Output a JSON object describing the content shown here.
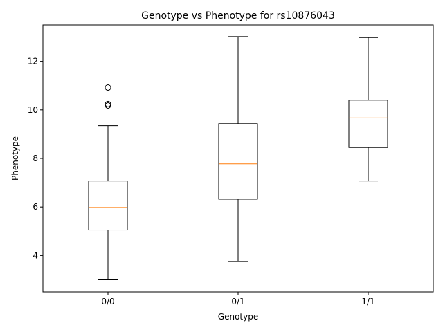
{
  "chart_data": {
    "type": "box",
    "title": "Genotype vs Phenotype for rs10876043",
    "xlabel": "Genotype",
    "ylabel": "Phenotype",
    "ylim": [
      2.5,
      13.5
    ],
    "yticks": [
      4,
      6,
      8,
      10,
      12
    ],
    "grid": false,
    "categories": [
      "0/0",
      "0/1",
      "1/1"
    ],
    "boxes": [
      {
        "category": "0/0",
        "whisker_low": 3.0,
        "q1": 5.05,
        "median": 5.98,
        "q3": 7.07,
        "whisker_high": 9.35,
        "outliers": [
          10.18,
          10.24,
          10.92
        ]
      },
      {
        "category": "0/1",
        "whisker_low": 3.75,
        "q1": 6.32,
        "median": 7.78,
        "q3": 9.43,
        "whisker_high": 13.02,
        "outliers": []
      },
      {
        "category": "1/1",
        "whisker_low": 7.07,
        "q1": 8.45,
        "median": 9.67,
        "q3": 10.4,
        "whisker_high": 12.98,
        "outliers": []
      }
    ],
    "colors": {
      "box": "#000000",
      "median": "#ff7f0e",
      "background": "#ffffff"
    }
  }
}
